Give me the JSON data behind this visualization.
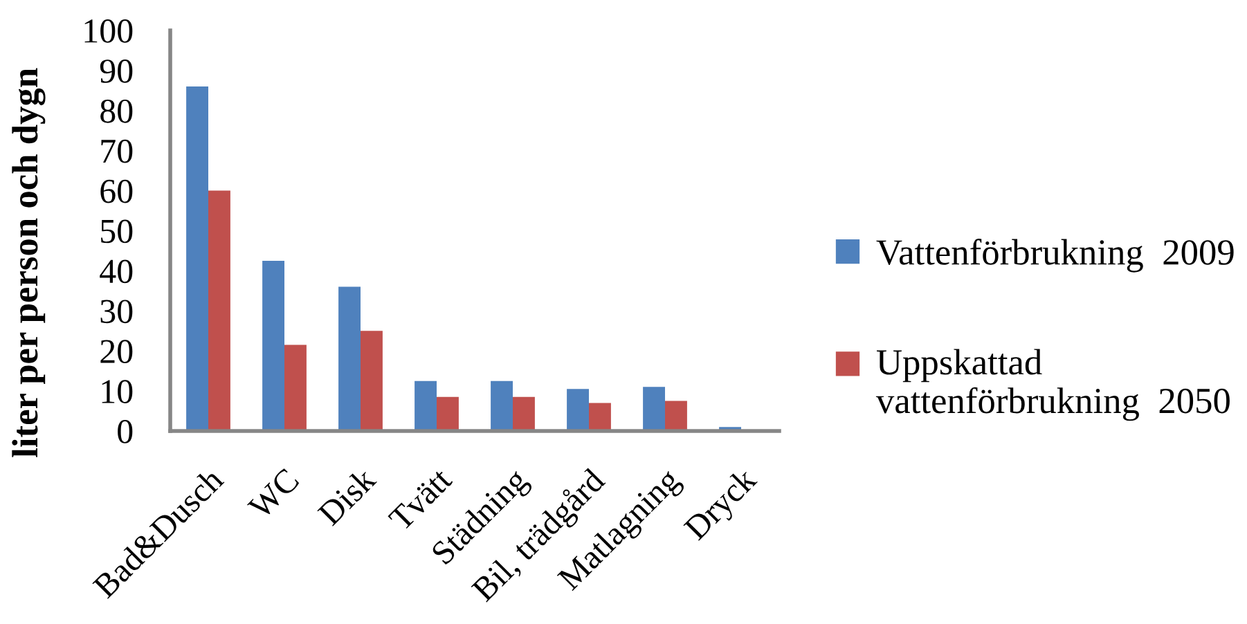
{
  "chart_data": {
    "type": "bar",
    "ylabel": "liter per person och dygn",
    "categories": [
      "Bad&Dusch",
      "WC",
      "Disk",
      "Tvätt",
      "Städning",
      "Bil, trädgård",
      "Matlagning",
      "Dryck"
    ],
    "series": [
      {
        "name": "Vattenförbrukning  2009",
        "color": "#4f81bd",
        "values": [
          86,
          42.5,
          36,
          12.5,
          12.5,
          10.5,
          11,
          1
        ]
      },
      {
        "name": "Uppskattad\nvattenförbrukning  2050",
        "color": "#c0504d",
        "values": [
          60,
          21.5,
          25,
          8.5,
          8.5,
          7,
          7.5,
          null
        ]
      }
    ],
    "ylim": [
      0,
      100
    ],
    "yticks": [
      0,
      10,
      20,
      30,
      40,
      50,
      60,
      70,
      80,
      90,
      100
    ],
    "legend": "right",
    "grid": false
  }
}
